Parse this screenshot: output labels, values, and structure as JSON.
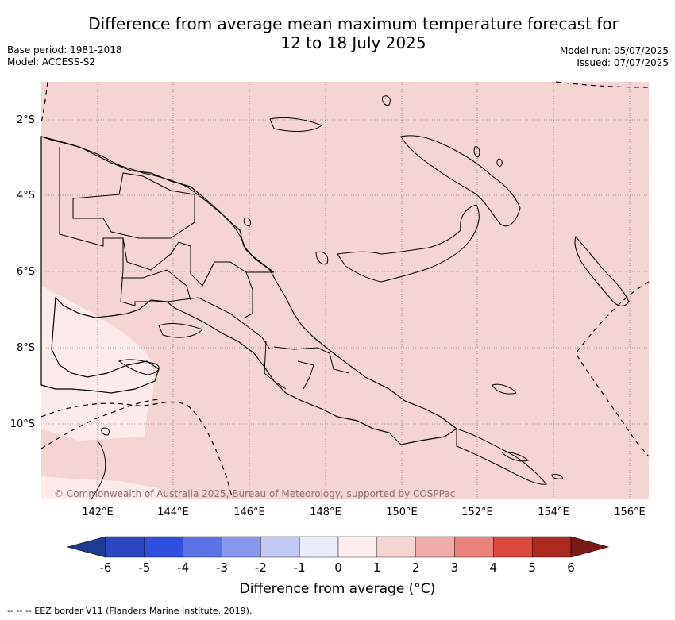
{
  "title_line1": "Difference from average mean maximum temperature forecast for",
  "title_line2": "12 to 18 July 2025",
  "base_period": "Base period: 1981-2018",
  "model": "Model: ACCESS-S2",
  "model_run": "Model run: 05/07/2025",
  "issued": "Issued: 07/07/2025",
  "copyright": "© Commonwealth of Australia 2025, Bureau of Meteorology, supported by COSPPac",
  "lon_labels": [
    "142°E",
    "144°E",
    "146°E",
    "148°E",
    "150°E",
    "152°E",
    "154°E",
    "156°E"
  ],
  "lat_labels": [
    "2°S",
    "4°S",
    "6°S",
    "8°S",
    "10°S"
  ],
  "colorbar": {
    "title": "Difference from average (°C)",
    "ticks": [
      "-6",
      "-5",
      "-4",
      "-3",
      "-2",
      "-1",
      "0",
      "1",
      "2",
      "3",
      "4",
      "5",
      "6"
    ],
    "colors": [
      "#1f3a93",
      "#2b47c4",
      "#2f4fe0",
      "#5a72e6",
      "#8797ec",
      "#c2c9f5",
      "#e8ecfb",
      "#fdecec",
      "#f6d4d3",
      "#f0aca8",
      "#e8827b",
      "#dc4a3e",
      "#ad2a21",
      "#7a1a16"
    ],
    "under_color": "#1f3a93",
    "over_color": "#7a1a16"
  },
  "map": {
    "background_color": "#f5d5d3",
    "light_region_color": "#fcebea",
    "grid": true
  },
  "footnote": "-- -- -- EEZ border V11 (Flanders Marine Institute, 2019)."
}
